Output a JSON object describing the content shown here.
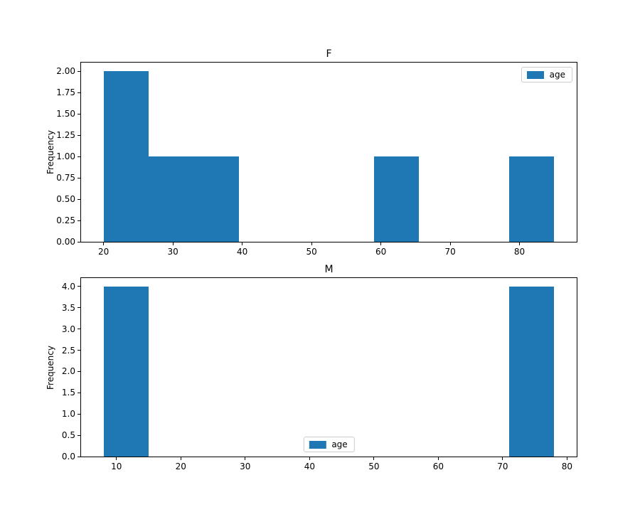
{
  "figure": {
    "background": "#ffffff"
  },
  "colors": {
    "bar": "#1f77b4",
    "spine": "#000000",
    "text": "#000000",
    "legend_border": "#cccccc"
  },
  "chart_data": [
    {
      "type": "bar",
      "title": "F",
      "ylabel": "Frequency",
      "legend": {
        "label": "age",
        "position": "upper-right"
      },
      "bin_edges": [
        20,
        26.5,
        33,
        39.5,
        46,
        52.5,
        59,
        65.5,
        72,
        78.5,
        85
      ],
      "counts": [
        2,
        1,
        1,
        0,
        0,
        0,
        1,
        0,
        0,
        1
      ],
      "xlim": [
        16.75,
        88.25
      ],
      "ylim": [
        0,
        2.1
      ],
      "xticks": {
        "values": [
          20,
          30,
          40,
          50,
          60,
          70,
          80
        ],
        "labels": [
          "20",
          "30",
          "40",
          "50",
          "60",
          "70",
          "80"
        ]
      },
      "yticks": {
        "values": [
          0,
          0.25,
          0.5,
          0.75,
          1.0,
          1.25,
          1.5,
          1.75,
          2.0
        ],
        "labels": [
          "0.00",
          "0.25",
          "0.50",
          "0.75",
          "1.00",
          "1.25",
          "1.50",
          "1.75",
          "2.00"
        ]
      },
      "grid": false
    },
    {
      "type": "bar",
      "title": "M",
      "ylabel": "Frequency",
      "legend": {
        "label": "age",
        "position": "lower-center"
      },
      "bin_edges": [
        8,
        15,
        22,
        29,
        36,
        43,
        50,
        57,
        64,
        71,
        78
      ],
      "counts": [
        4,
        0,
        0,
        0,
        0,
        0,
        0,
        0,
        0,
        4
      ],
      "xlim": [
        4.5,
        81.5
      ],
      "ylim": [
        0,
        4.2
      ],
      "xticks": {
        "values": [
          10,
          20,
          30,
          40,
          50,
          60,
          70,
          80
        ],
        "labels": [
          "10",
          "20",
          "30",
          "40",
          "50",
          "60",
          "70",
          "80"
        ]
      },
      "yticks": {
        "values": [
          0,
          0.5,
          1.0,
          1.5,
          2.0,
          2.5,
          3.0,
          3.5,
          4.0
        ],
        "labels": [
          "0.0",
          "0.5",
          "1.0",
          "1.5",
          "2.0",
          "2.5",
          "3.0",
          "3.5",
          "4.0"
        ]
      },
      "grid": false
    }
  ]
}
